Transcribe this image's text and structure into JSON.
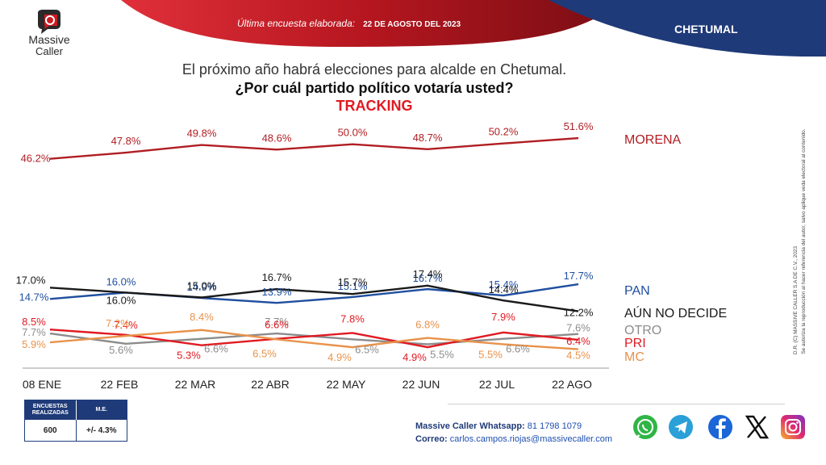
{
  "brand": {
    "name_line1": "Massive",
    "name_line2": "Caller"
  },
  "header": {
    "survey_label": "Última encuesta elaborada:",
    "survey_date": "22 DE AGOSTO DEL 2023",
    "city": "CHETUMAL"
  },
  "titles": {
    "line1": "El próximo año habrá elecciones para alcalde en Chetumal.",
    "line2": "¿Por cuál partido político votaría usted?",
    "line3": "TRACKING"
  },
  "colors": {
    "morena": "#b01e23",
    "pan": "#1f4fa0",
    "aun_no_decide": "#1a1a1a",
    "otro": "#8c8c8c",
    "pri": "#e01a22",
    "mc": "#e8924a",
    "banner_red": "#b5161f",
    "banner_blue": "#1f3a78"
  },
  "chart_data": {
    "type": "line",
    "title": "TRACKING",
    "categories": [
      "08 ENE",
      "22 FEB",
      "22 MAR",
      "22 ABR",
      "22 MAY",
      "22 JUN",
      "22 JUL",
      "22 AGO"
    ],
    "series": [
      {
        "name": "MORENA",
        "values": [
          46.2,
          47.8,
          49.8,
          48.6,
          50.0,
          48.7,
          50.2,
          51.6
        ],
        "labels": [
          "46.2%",
          "47.8%",
          "49.8%",
          "48.6%",
          "50.0%",
          "48.7%",
          "50.2%",
          "51.6%"
        ]
      },
      {
        "name": "PAN",
        "values": [
          14.7,
          16.0,
          14.9,
          13.9,
          15.1,
          16.7,
          15.4,
          17.7
        ],
        "labels": [
          "14.7%",
          "16.0%",
          "14.9%",
          "13.9%",
          "15.1%",
          "16.7%",
          "15.4%",
          "17.7%"
        ]
      },
      {
        "name": "AÚN NO DECIDE",
        "values": [
          17.0,
          16.0,
          15.0,
          16.7,
          15.7,
          17.4,
          14.4,
          12.2
        ],
        "labels": [
          "17.0%",
          "16.0%",
          "15.0%",
          "16.7%",
          "15.7%",
          "17.4%",
          "14.4%",
          "12.2%"
        ]
      },
      {
        "name": "OTRO",
        "values": [
          7.7,
          5.6,
          6.6,
          7.7,
          6.5,
          5.5,
          6.6,
          7.6
        ],
        "labels": [
          "7.7%",
          "5.6%",
          "6.6%",
          "7.7%",
          "6.5%",
          "5.5%",
          "6.6%",
          "7.6%"
        ]
      },
      {
        "name": "PRI",
        "values": [
          8.5,
          7.4,
          5.3,
          6.6,
          7.8,
          4.9,
          7.9,
          6.4
        ],
        "labels": [
          "8.5%",
          "7.4%",
          "5.3%",
          "6.6%",
          "7.8%",
          "4.9%",
          "7.9%",
          "6.4%"
        ]
      },
      {
        "name": "MC",
        "values": [
          5.9,
          7.2,
          8.4,
          6.5,
          4.9,
          6.8,
          5.5,
          4.5
        ],
        "labels": [
          "5.9%",
          "7.2%",
          "8.4%",
          "6.5%",
          "4.9%",
          "6.8%",
          "5.5%",
          "4.5%"
        ]
      }
    ],
    "grid": false,
    "legend": "right"
  },
  "table": {
    "col1_header": "ENCUESTAS REALIZADAS",
    "col2_header": "M.E.",
    "col1_value": "600",
    "col2_value": "+/- 4.3%"
  },
  "contact": {
    "whatsapp_label": "Massive Caller Whatsapp:",
    "whatsapp_number": "81 1798 1079",
    "email_label": "Correo:",
    "email": "carlos.campos.riojas@massivecaller.com"
  },
  "side_note": {
    "line1": "D.R. (C) MASSIVE CALLER S.A DE C.V., 2023",
    "line2": "Se autoriza la reproducción al hacer referencia del autor, salvo aplique veda electoral al contenido."
  },
  "social_icons": [
    "whatsapp-icon",
    "telegram-icon",
    "facebook-icon",
    "x-icon",
    "instagram-icon"
  ]
}
